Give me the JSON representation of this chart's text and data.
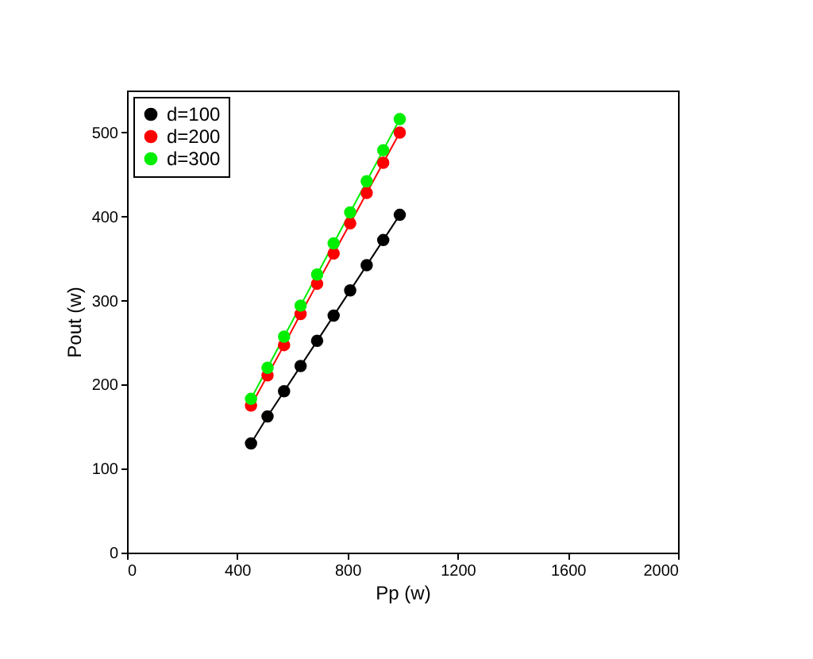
{
  "chart_data": {
    "type": "line",
    "xlabel": "Pp (w)",
    "ylabel": "Pout (w)",
    "x": [
      450,
      510,
      570,
      630,
      690,
      750,
      810,
      870,
      930,
      990
    ],
    "series": [
      {
        "name": "d=100",
        "color": "#000000",
        "values": [
          130,
          162,
          192,
          222,
          252,
          282,
          312,
          342,
          372,
          402
        ]
      },
      {
        "name": "d=200",
        "color": "#ff0000",
        "values": [
          175,
          211,
          247,
          284,
          320,
          356,
          392,
          428,
          464,
          500
        ]
      },
      {
        "name": "d=300",
        "color": "#00ee00",
        "values": [
          183,
          220,
          257,
          294,
          331,
          368,
          405,
          442,
          479,
          516
        ]
      }
    ],
    "xlim": [
      0,
      2000
    ],
    "xticks": [
      0,
      400,
      800,
      1200,
      1600,
      2000
    ],
    "ylim": [
      0,
      550
    ],
    "yticks": [
      0,
      100,
      200,
      300,
      400,
      500
    ],
    "legend": "top left",
    "marker": "circle",
    "line_style": "solid",
    "grid": false
  }
}
